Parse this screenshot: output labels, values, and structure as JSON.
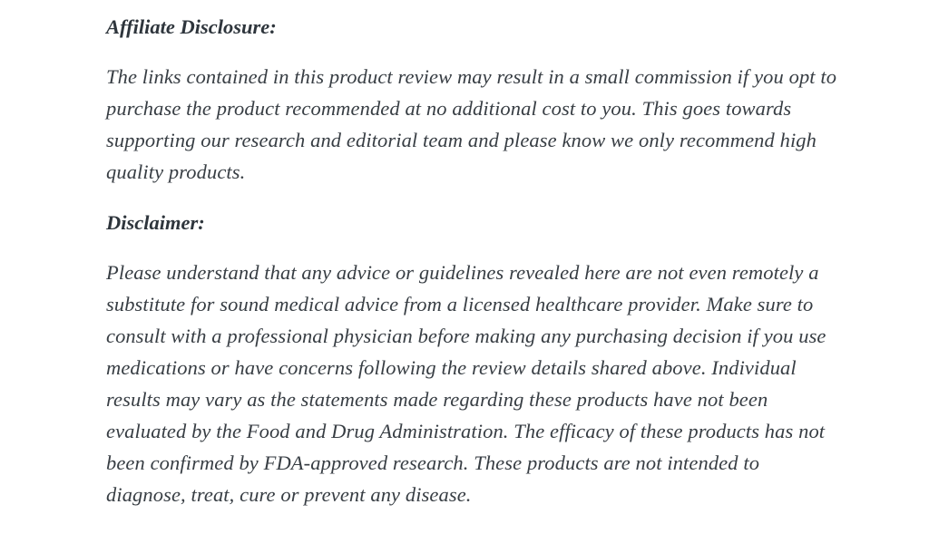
{
  "page": {
    "background_color": "#ffffff",
    "body_text_color": "#383e44",
    "heading_text_color": "#2e353c"
  },
  "article": {
    "sections": [
      {
        "heading": "Affiliate Disclosure:",
        "body": "The links contained in this product review may result in a small commission if you opt to purchase the product recommended at no additional cost to you. This goes towards supporting our research and editorial team and please know we only recommend high quality products."
      },
      {
        "heading": "Disclaimer:",
        "body": "Please understand that any advice or guidelines revealed here are not even remotely a substitute for sound medical advice from a licensed healthcare provider. Make sure to consult with a professional physician before making any purchasing decision if you use medications or have concerns following the review details shared above. Individual results may vary as the statements made regarding these products have not been evaluated by the Food and Drug Administration. The efficacy of these products has not been confirmed by FDA-approved research. These products are not intended to diagnose, treat, cure or prevent any disease."
      }
    ]
  }
}
